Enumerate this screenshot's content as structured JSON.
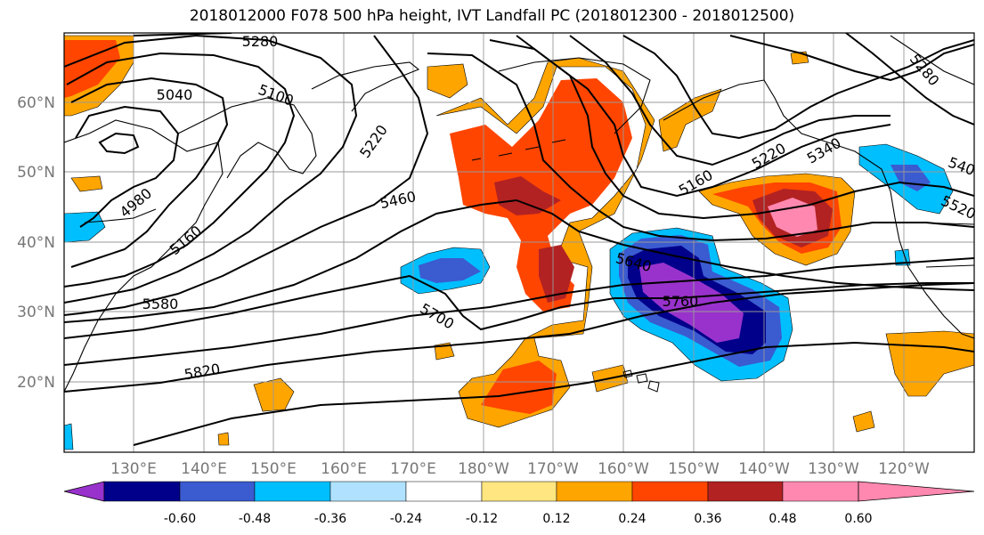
{
  "title": "2018012000 F078 500 hPa height, IVT Landfall PC (2018012300 - 2018012500)",
  "lat_labels": [
    "60°N",
    "50°N",
    "40°N",
    "30°N",
    "20°N"
  ],
  "lon_labels": [
    "130°E",
    "140°E",
    "150°E",
    "160°E",
    "170°E",
    "180°W",
    "170°W",
    "160°W",
    "150°W",
    "140°W",
    "130°W",
    "120°W"
  ],
  "contour_labels": [
    "5280",
    "5040",
    "5100",
    "5220",
    "4980",
    "5160",
    "5460",
    "5580",
    "5700",
    "5820",
    "5160",
    "5640",
    "5760",
    "5220",
    "5340",
    "5280",
    "540",
    "5520"
  ],
  "colorbar": {
    "ticks": [
      "-0.60",
      "-0.48",
      "-0.36",
      "-0.24",
      "-0.12",
      "0.12",
      "0.24",
      "0.36",
      "0.48",
      "0.60"
    ],
    "colors": [
      "#9932cc",
      "#00008b",
      "#3b5bd0",
      "#00bfff",
      "#b0e2ff",
      "#ffffff",
      "#ffe680",
      "#ffa500",
      "#ff4500",
      "#b22222",
      "#ff88b0"
    ]
  }
}
